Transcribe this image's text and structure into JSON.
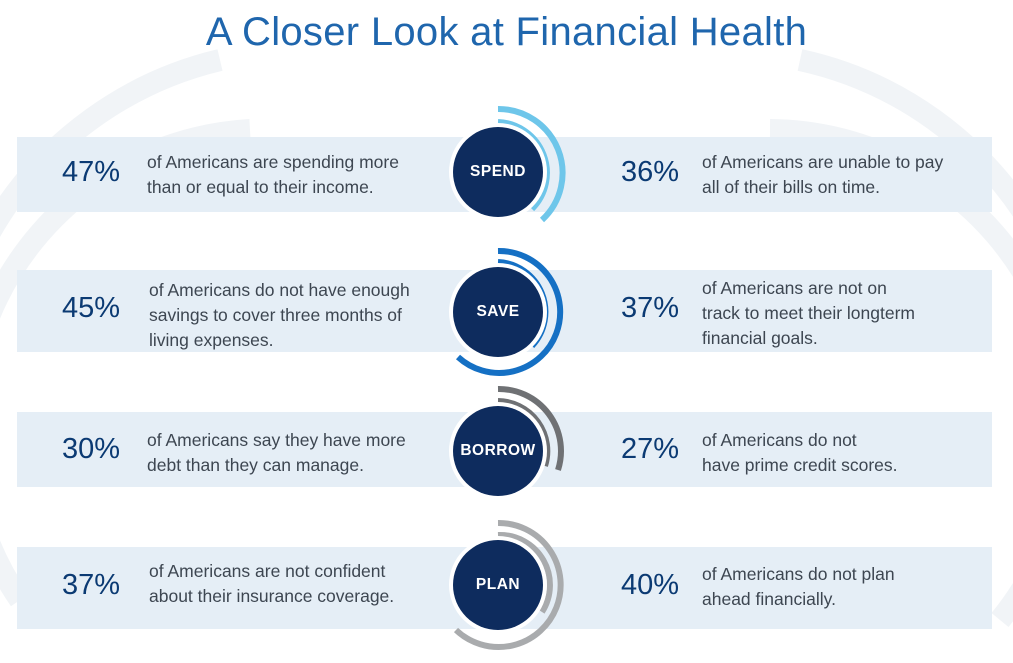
{
  "title": "A Closer Look at Financial Health",
  "colors": {
    "title": "#1f66ad",
    "band": "#e5eef6",
    "percent": "#0b3a73",
    "badge": "#0e2c5e",
    "spend_ring": "#6ec6ea",
    "save_ring": "#1570c4",
    "borrow_ring": "#6f7174",
    "plan_ring": "#a9abad"
  },
  "rows": [
    {
      "category": "SPEND",
      "left_percent": "47%",
      "left_text_lines": [
        "of Americans are spending more",
        "than or equal to their income."
      ],
      "right_percent": "36%",
      "right_text_lines": [
        "of Americans are unable to pay",
        "all of their bills on time."
      ]
    },
    {
      "category": "SAVE",
      "left_percent": "45%",
      "left_text_lines": [
        "of Americans do not have enough",
        "savings to cover three months of",
        "living expenses."
      ],
      "right_percent": "37%",
      "right_text_lines": [
        "of Americans are not on",
        "track to meet their longterm",
        "financial goals."
      ]
    },
    {
      "category": "BORROW",
      "left_percent": "30%",
      "left_text_lines": [
        "of Americans say they have more",
        "debt than they can manage."
      ],
      "right_percent": "27%",
      "right_text_lines": [
        "of Americans do not",
        "have prime credit scores."
      ]
    },
    {
      "category": "PLAN",
      "left_percent": "37%",
      "left_text_lines": [
        "of Americans are not confident",
        "about their insurance coverage."
      ],
      "right_percent": "40%",
      "right_text_lines": [
        "of Americans do not plan",
        "ahead financially."
      ]
    }
  ]
}
